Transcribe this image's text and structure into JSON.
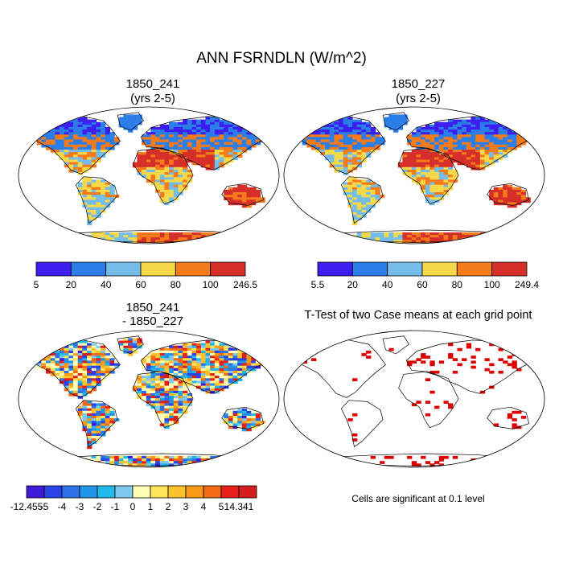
{
  "title": "ANN FSRNDLN (W/m^2)",
  "chart_data": [
    {
      "type": "heatmap",
      "title_line1": "1850_241",
      "title_line2": "(yrs 2-5)",
      "colorbar": {
        "labels": [
          "5",
          "20",
          "40",
          "60",
          "80",
          "100",
          "246.5"
        ],
        "colors": [
          "#3c1ef0",
          "#2b7ee8",
          "#74bde9",
          "#f5d94a",
          "#f57a1a",
          "#d62f29"
        ]
      }
    },
    {
      "type": "heatmap",
      "title_line1": "1850_227",
      "title_line2": "(yrs 2-5)",
      "colorbar": {
        "labels": [
          "5.5",
          "20",
          "40",
          "60",
          "80",
          "100",
          "249.4"
        ],
        "colors": [
          "#3c1ef0",
          "#2b7ee8",
          "#74bde9",
          "#f5d94a",
          "#f57a1a",
          "#d62f29"
        ]
      }
    },
    {
      "type": "heatmap",
      "title_line1": "1850_241",
      "title_line2": "- 1850_227",
      "colorbar": {
        "labels": [
          "-12.455",
          "-5",
          "-4",
          "-3",
          "-2",
          "-1",
          "0",
          "1",
          "2",
          "3",
          "4",
          "5",
          "14.341"
        ],
        "colors": [
          "#3f1bd8",
          "#2b44e8",
          "#2d71e8",
          "#2196e8",
          "#21b8ea",
          "#7ec8ee",
          "#ffffb8",
          "#fde55a",
          "#fbc22c",
          "#f89a17",
          "#f46913",
          "#e8201c",
          "#d41e1e"
        ]
      }
    },
    {
      "type": "heatmap",
      "title": "T-Test of two Case means at each grid point",
      "note": "Cells are significant at 0.1 level",
      "significant_color": "#dd0000"
    }
  ]
}
